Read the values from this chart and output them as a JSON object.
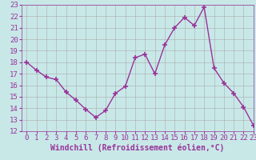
{
  "x": [
    0,
    1,
    2,
    3,
    4,
    5,
    6,
    7,
    8,
    9,
    10,
    11,
    12,
    13,
    14,
    15,
    16,
    17,
    18,
    19,
    20,
    21,
    22,
    23
  ],
  "y": [
    18.0,
    17.3,
    16.7,
    16.5,
    15.4,
    14.7,
    13.9,
    13.2,
    13.8,
    15.3,
    15.9,
    18.4,
    18.7,
    17.0,
    19.5,
    21.0,
    21.9,
    21.2,
    22.8,
    17.5,
    16.2,
    15.3,
    14.1,
    12.5
  ],
  "line_color": "#993399",
  "marker": "+",
  "marker_size": 4,
  "marker_lw": 1.2,
  "line_width": 1.0,
  "bg_color": "#c8e8e8",
  "grid_color": "#aaaaaa",
  "xlabel": "Windchill (Refroidissement éolien,°C)",
  "xlabel_color": "#993399",
  "tick_color": "#993399",
  "ylim": [
    12,
    23
  ],
  "xlim": [
    -0.5,
    23
  ],
  "yticks": [
    12,
    13,
    14,
    15,
    16,
    17,
    18,
    19,
    20,
    21,
    22,
    23
  ],
  "xticks": [
    0,
    1,
    2,
    3,
    4,
    5,
    6,
    7,
    8,
    9,
    10,
    11,
    12,
    13,
    14,
    15,
    16,
    17,
    18,
    19,
    20,
    21,
    22,
    23
  ],
  "tick_label_size": 6.5,
  "xlabel_size": 7.0
}
